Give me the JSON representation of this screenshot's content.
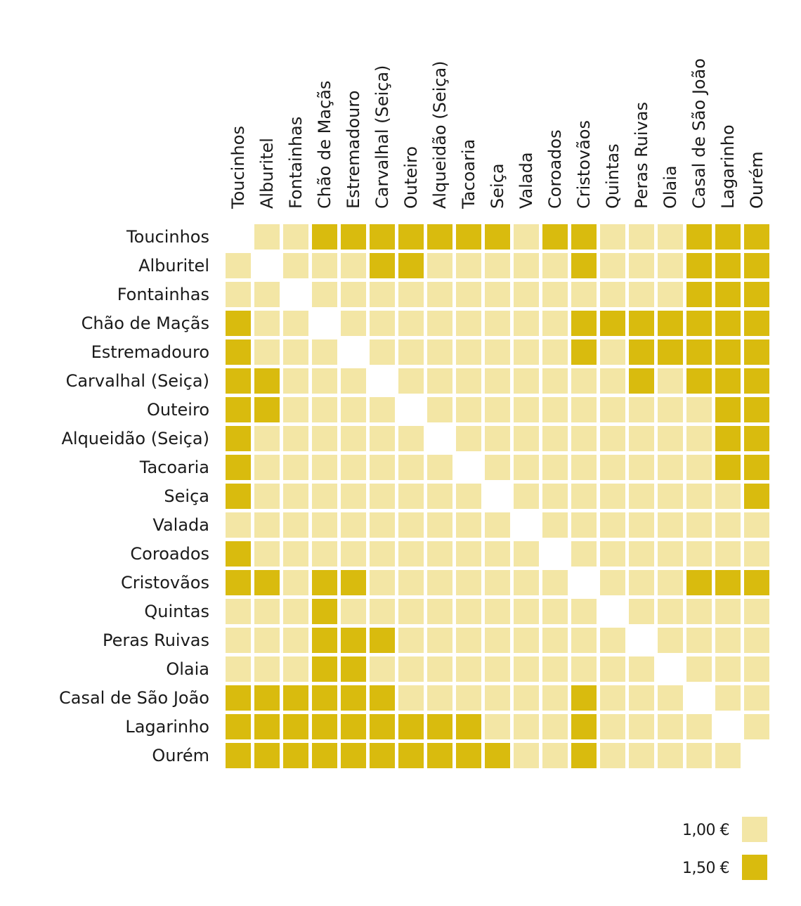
{
  "chart_data": {
    "type": "heatmap",
    "title": "",
    "xlabel": "",
    "ylabel": "",
    "labels": [
      "Toucinhos",
      "Alburitel",
      "Fontainhas",
      "Chão de Maçãs",
      "Estremadouro",
      "Carvalhal (Seiça)",
      "Outeiro",
      "Alqueidão (Seiça)",
      "Tacoaria",
      "Seiça",
      "Valada",
      "Coroados",
      "Cristovãos",
      "Quintas",
      "Peras Ruivas",
      "Olaia",
      "Casal de São João",
      "Lagarinho",
      "Ourém"
    ],
    "matrix": [
      [
        null,
        1,
        1,
        1.5,
        1.5,
        1.5,
        1.5,
        1.5,
        1.5,
        1.5,
        1,
        1.5,
        1.5,
        1,
        1,
        1,
        1.5,
        1.5,
        1.5
      ],
      [
        1,
        null,
        1,
        1,
        1,
        1.5,
        1.5,
        1,
        1,
        1,
        1,
        1,
        1.5,
        1,
        1,
        1,
        1.5,
        1.5,
        1.5
      ],
      [
        1,
        1,
        null,
        1,
        1,
        1,
        1,
        1,
        1,
        1,
        1,
        1,
        1,
        1,
        1,
        1,
        1.5,
        1.5,
        1.5
      ],
      [
        1.5,
        1,
        1,
        null,
        1,
        1,
        1,
        1,
        1,
        1,
        1,
        1,
        1.5,
        1.5,
        1.5,
        1.5,
        1.5,
        1.5,
        1.5
      ],
      [
        1.5,
        1,
        1,
        1,
        null,
        1,
        1,
        1,
        1,
        1,
        1,
        1,
        1.5,
        1,
        1.5,
        1.5,
        1.5,
        1.5,
        1.5
      ],
      [
        1.5,
        1.5,
        1,
        1,
        1,
        null,
        1,
        1,
        1,
        1,
        1,
        1,
        1,
        1,
        1.5,
        1,
        1.5,
        1.5,
        1.5
      ],
      [
        1.5,
        1.5,
        1,
        1,
        1,
        1,
        null,
        1,
        1,
        1,
        1,
        1,
        1,
        1,
        1,
        1,
        1,
        1.5,
        1.5
      ],
      [
        1.5,
        1,
        1,
        1,
        1,
        1,
        1,
        null,
        1,
        1,
        1,
        1,
        1,
        1,
        1,
        1,
        1,
        1.5,
        1.5
      ],
      [
        1.5,
        1,
        1,
        1,
        1,
        1,
        1,
        1,
        null,
        1,
        1,
        1,
        1,
        1,
        1,
        1,
        1,
        1.5,
        1.5
      ],
      [
        1.5,
        1,
        1,
        1,
        1,
        1,
        1,
        1,
        1,
        null,
        1,
        1,
        1,
        1,
        1,
        1,
        1,
        1,
        1.5
      ],
      [
        1,
        1,
        1,
        1,
        1,
        1,
        1,
        1,
        1,
        1,
        null,
        1,
        1,
        1,
        1,
        1,
        1,
        1,
        1
      ],
      [
        1.5,
        1,
        1,
        1,
        1,
        1,
        1,
        1,
        1,
        1,
        1,
        null,
        1,
        1,
        1,
        1,
        1,
        1,
        1
      ],
      [
        1.5,
        1.5,
        1,
        1.5,
        1.5,
        1,
        1,
        1,
        1,
        1,
        1,
        1,
        null,
        1,
        1,
        1,
        1.5,
        1.5,
        1.5
      ],
      [
        1,
        1,
        1,
        1.5,
        1,
        1,
        1,
        1,
        1,
        1,
        1,
        1,
        1,
        null,
        1,
        1,
        1,
        1,
        1
      ],
      [
        1,
        1,
        1,
        1.5,
        1.5,
        1.5,
        1,
        1,
        1,
        1,
        1,
        1,
        1,
        1,
        null,
        1,
        1,
        1,
        1
      ],
      [
        1,
        1,
        1,
        1.5,
        1.5,
        1,
        1,
        1,
        1,
        1,
        1,
        1,
        1,
        1,
        1,
        null,
        1,
        1,
        1
      ],
      [
        1.5,
        1.5,
        1.5,
        1.5,
        1.5,
        1.5,
        1,
        1,
        1,
        1,
        1,
        1,
        1.5,
        1,
        1,
        1,
        null,
        1,
        1
      ],
      [
        1.5,
        1.5,
        1.5,
        1.5,
        1.5,
        1.5,
        1.5,
        1.5,
        1.5,
        1,
        1,
        1,
        1.5,
        1,
        1,
        1,
        1,
        null,
        1
      ],
      [
        1.5,
        1.5,
        1.5,
        1.5,
        1.5,
        1.5,
        1.5,
        1.5,
        1.5,
        1.5,
        1,
        1,
        1.5,
        1,
        1,
        1,
        1,
        1,
        null
      ]
    ],
    "legend": {
      "position": "bottom-right",
      "items": [
        {
          "label": "1,00 €",
          "value": 1,
          "color": "#f3e6a5"
        },
        {
          "label": "1,50 €",
          "value": 1.5,
          "color": "#d9bb0e"
        }
      ]
    },
    "colors": {
      "low": "#f3e6a5",
      "high": "#d9bb0e"
    }
  }
}
